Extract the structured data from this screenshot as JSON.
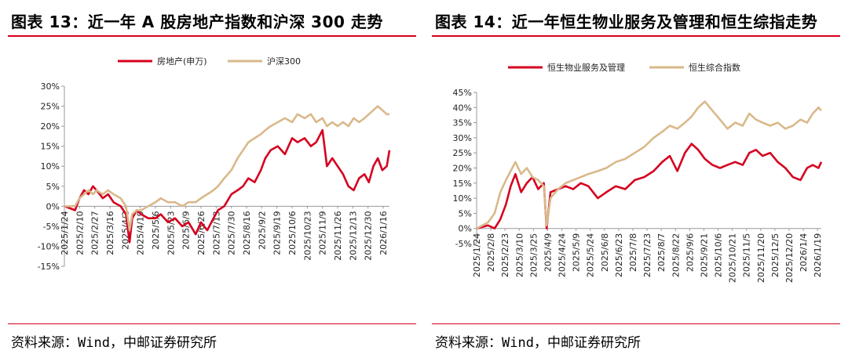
{
  "left": {
    "title": "图表 13：近一年 A 股房地产指数和沪深 300 走势",
    "source": "资料来源：Wind，中邮证券研究所"
  },
  "right": {
    "title": "图表 14：近一年恒生物业服务及管理和恒生综指走势",
    "source": "资料来源：Wind，中邮证券研究所"
  },
  "colors": {
    "red": "#d5001f",
    "tan": "#d9b98a",
    "axis": "#999999"
  },
  "chart_data": [
    {
      "type": "line",
      "legend_position": "top-center",
      "ylim": [
        -15,
        30
      ],
      "yticks": [
        -15,
        -10,
        -5,
        0,
        5,
        10,
        15,
        20,
        25,
        30
      ],
      "ytick_format": "percent",
      "x_domain": [
        "2025/1/24",
        "2026/1/23"
      ],
      "xticks": [
        "2025/1/24",
        "2025/2/10",
        "2025/2/27",
        "2025/3/16",
        "2025/4/2",
        "2025/4/19",
        "2025/5/6",
        "2025/5/23",
        "2025/6/9",
        "2025/6/26",
        "2025/7/13",
        "2025/7/30",
        "2025/8/16",
        "2025/9/2",
        "2025/9/19",
        "2025/10/6",
        "2025/10/23",
        "2025/11/9",
        "2025/11/26",
        "2025/12/13",
        "2025/12/30",
        "2026/1/16"
      ],
      "series": [
        {
          "name": "房地产(申万)",
          "color": "#d5001f",
          "x": [
            "2025/1/24",
            "2025/2/5",
            "2025/2/10",
            "2025/2/15",
            "2025/2/20",
            "2025/2/25",
            "2025/3/1",
            "2025/3/8",
            "2025/3/14",
            "2025/3/20",
            "2025/3/28",
            "2025/4/3",
            "2025/4/7",
            "2025/4/10",
            "2025/4/15",
            "2025/4/20",
            "2025/4/28",
            "2025/5/6",
            "2025/5/12",
            "2025/5/20",
            "2025/5/28",
            "2025/6/5",
            "2025/6/12",
            "2025/6/20",
            "2025/6/26",
            "2025/7/3",
            "2025/7/10",
            "2025/7/15",
            "2025/7/22",
            "2025/7/30",
            "2025/8/6",
            "2025/8/12",
            "2025/8/18",
            "2025/8/25",
            "2025/9/1",
            "2025/9/6",
            "2025/9/12",
            "2025/9/20",
            "2025/9/28",
            "2025/10/6",
            "2025/10/12",
            "2025/10/20",
            "2025/10/27",
            "2025/11/2",
            "2025/11/9",
            "2025/11/14",
            "2025/11/20",
            "2025/11/26",
            "2025/12/2",
            "2025/12/8",
            "2025/12/14",
            "2025/12/20",
            "2025/12/26",
            "2025/12/31",
            "2026/1/5",
            "2026/1/10",
            "2026/1/15",
            "2026/1/20",
            "2026/1/23"
          ],
          "values": [
            0,
            -1,
            2,
            4,
            3,
            5,
            4,
            2,
            3,
            1,
            0,
            -2,
            -9,
            -3,
            -1,
            -2,
            -3,
            -3,
            -2,
            -4,
            -3,
            -5,
            -4,
            -7,
            -4,
            -6,
            -3,
            -1,
            0,
            3,
            4,
            5,
            7,
            6,
            9,
            12,
            14,
            15,
            13,
            17,
            16,
            17,
            15,
            16,
            19,
            10,
            12,
            10,
            8,
            5,
            4,
            7,
            8,
            6,
            10,
            12,
            9,
            10,
            14
          ]
        },
        {
          "name": "沪深300",
          "color": "#d9b98a",
          "x": [
            "2025/1/24",
            "2025/2/5",
            "2025/2/10",
            "2025/2/15",
            "2025/2/20",
            "2025/2/25",
            "2025/3/1",
            "2025/3/8",
            "2025/3/14",
            "2025/3/20",
            "2025/3/28",
            "2025/4/3",
            "2025/4/7",
            "2025/4/10",
            "2025/4/15",
            "2025/4/20",
            "2025/4/28",
            "2025/5/6",
            "2025/5/12",
            "2025/5/20",
            "2025/5/28",
            "2025/6/5",
            "2025/6/12",
            "2025/6/20",
            "2025/6/26",
            "2025/7/3",
            "2025/7/10",
            "2025/7/15",
            "2025/7/22",
            "2025/7/30",
            "2025/8/6",
            "2025/8/12",
            "2025/8/18",
            "2025/8/25",
            "2025/9/1",
            "2025/9/6",
            "2025/9/12",
            "2025/9/20",
            "2025/9/28",
            "2025/10/6",
            "2025/10/12",
            "2025/10/20",
            "2025/10/27",
            "2025/11/2",
            "2025/11/9",
            "2025/11/14",
            "2025/11/20",
            "2025/11/26",
            "2025/12/2",
            "2025/12/8",
            "2025/12/14",
            "2025/12/20",
            "2025/12/26",
            "2025/12/31",
            "2026/1/5",
            "2026/1/10",
            "2026/1/15",
            "2026/1/20",
            "2026/1/23"
          ],
          "values": [
            0,
            0,
            2,
            3,
            4,
            3,
            4,
            3,
            4,
            3,
            2,
            0,
            -6,
            -2,
            -1,
            -1,
            0,
            1,
            2,
            1,
            1,
            0,
            1,
            1,
            2,
            3,
            4,
            5,
            7,
            9,
            12,
            14,
            16,
            17,
            18,
            19,
            20,
            21,
            22,
            21,
            23,
            22,
            23,
            21,
            22,
            20,
            21,
            20,
            21,
            20,
            22,
            21,
            22,
            23,
            24,
            25,
            24,
            23,
            23
          ]
        }
      ]
    },
    {
      "type": "line",
      "legend_position": "top-center",
      "ylim": [
        -5,
        45
      ],
      "yticks": [
        -5,
        0,
        5,
        10,
        15,
        20,
        25,
        30,
        35,
        40,
        45
      ],
      "ytick_format": "percent",
      "x_domain": [
        "2025/1/24",
        "2026/1/23"
      ],
      "xticks": [
        "2025/1/24",
        "2025/2/8",
        "2025/2/23",
        "2025/3/10",
        "2025/3/25",
        "2025/4/9",
        "2025/4/24",
        "2025/5/9",
        "2025/5/24",
        "2025/6/8",
        "2025/6/23",
        "2025/7/8",
        "2025/7/23",
        "2025/8/7",
        "2025/8/22",
        "2025/9/6",
        "2025/9/21",
        "2025/10/6",
        "2025/10/21",
        "2025/11/5",
        "2025/11/20",
        "2025/12/5",
        "2025/12/20",
        "2026/1/4",
        "2026/1/19"
      ],
      "series": [
        {
          "name": "恒生物业服务及管理",
          "color": "#d5001f",
          "x": [
            "2025/1/24",
            "2025/2/5",
            "2025/2/12",
            "2025/2/18",
            "2025/2/24",
            "2025/3/1",
            "2025/3/6",
            "2025/3/12",
            "2025/3/18",
            "2025/3/24",
            "2025/3/30",
            "2025/4/5",
            "2025/4/8",
            "2025/4/12",
            "2025/4/20",
            "2025/4/28",
            "2025/5/6",
            "2025/5/14",
            "2025/5/22",
            "2025/6/1",
            "2025/6/10",
            "2025/6/20",
            "2025/6/30",
            "2025/7/10",
            "2025/7/20",
            "2025/7/30",
            "2025/8/8",
            "2025/8/16",
            "2025/8/24",
            "2025/9/1",
            "2025/9/8",
            "2025/9/15",
            "2025/9/22",
            "2025/9/30",
            "2025/10/8",
            "2025/10/16",
            "2025/10/24",
            "2025/11/1",
            "2025/11/8",
            "2025/11/15",
            "2025/11/22",
            "2025/11/30",
            "2025/12/8",
            "2025/12/16",
            "2025/12/24",
            "2026/1/1",
            "2026/1/8",
            "2026/1/14",
            "2026/1/20",
            "2026/1/23"
          ],
          "values": [
            0,
            1,
            0,
            3,
            8,
            14,
            18,
            12,
            15,
            17,
            13,
            15,
            0,
            12,
            13,
            14,
            13,
            15,
            14,
            10,
            12,
            14,
            13,
            16,
            17,
            19,
            22,
            24,
            19,
            25,
            28,
            26,
            23,
            21,
            20,
            21,
            22,
            21,
            25,
            26,
            24,
            25,
            22,
            20,
            17,
            16,
            20,
            21,
            20,
            22
          ]
        },
        {
          "name": "恒生综合指数",
          "color": "#d9b98a",
          "x": [
            "2025/1/24",
            "2025/2/5",
            "2025/2/12",
            "2025/2/18",
            "2025/2/24",
            "2025/3/1",
            "2025/3/6",
            "2025/3/12",
            "2025/3/18",
            "2025/3/24",
            "2025/3/30",
            "2025/4/5",
            "2025/4/8",
            "2025/4/12",
            "2025/4/20",
            "2025/4/28",
            "2025/5/6",
            "2025/5/14",
            "2025/5/22",
            "2025/6/1",
            "2025/6/10",
            "2025/6/20",
            "2025/6/30",
            "2025/7/10",
            "2025/7/20",
            "2025/7/30",
            "2025/8/8",
            "2025/8/16",
            "2025/8/24",
            "2025/9/1",
            "2025/9/8",
            "2025/9/15",
            "2025/9/22",
            "2025/9/30",
            "2025/10/8",
            "2025/10/16",
            "2025/10/24",
            "2025/11/1",
            "2025/11/8",
            "2025/11/15",
            "2025/11/22",
            "2025/11/30",
            "2025/12/8",
            "2025/12/16",
            "2025/12/24",
            "2026/1/1",
            "2026/1/8",
            "2026/1/14",
            "2026/1/20",
            "2026/1/23"
          ],
          "values": [
            0,
            2,
            5,
            12,
            16,
            19,
            22,
            18,
            20,
            17,
            16,
            14,
            1,
            10,
            13,
            15,
            16,
            17,
            18,
            19,
            20,
            22,
            23,
            25,
            27,
            30,
            32,
            34,
            33,
            35,
            37,
            40,
            42,
            39,
            36,
            33,
            35,
            34,
            38,
            36,
            35,
            34,
            35,
            33,
            34,
            36,
            35,
            38,
            40,
            39
          ]
        }
      ]
    }
  ]
}
